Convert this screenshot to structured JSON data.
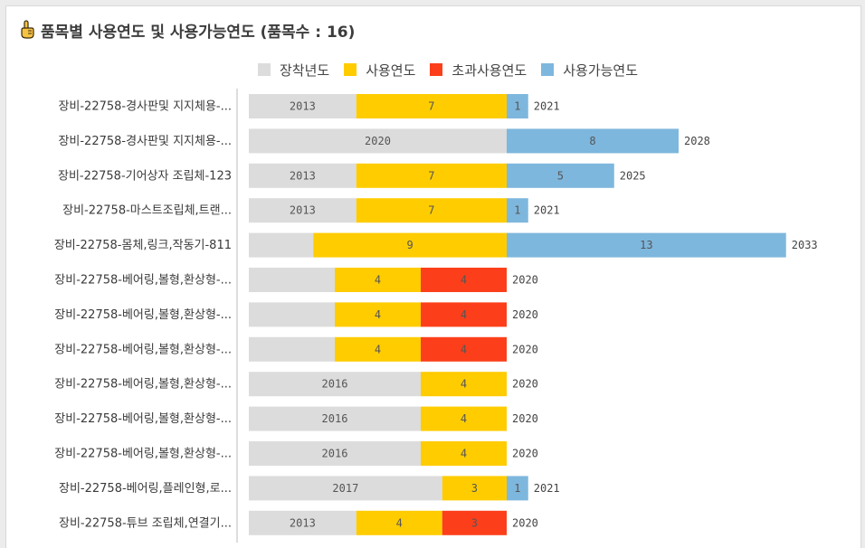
{
  "title": "품목별 사용연도 및 사용가능연도 (품목수 : 16)",
  "icon": "pointing-hand-icon",
  "colors": {
    "install": "#dcdcdc",
    "use": "#ffcc00",
    "over": "#fc3f1a",
    "avail": "#7eb7dd",
    "axis": "#bbbbbb"
  },
  "chart_data": {
    "type": "bar",
    "orientation": "horizontal",
    "stacked": true,
    "title": "품목별 사용연도 및 사용가능연도 (품목수 : 16)",
    "legend_position": "top",
    "legend": [
      {
        "key": "install",
        "label": "장착년도"
      },
      {
        "key": "use",
        "label": "사용연도"
      },
      {
        "key": "over",
        "label": "초과사용연도"
      },
      {
        "key": "avail",
        "label": "사용가능연도"
      }
    ],
    "xlim": [
      2008,
      2036
    ],
    "categories": [
      "장비-22758-경사판및 지지체용-...",
      "장비-22758-경사판및 지지체용-...",
      "장비-22758-기어상자 조립체-123",
      "장비-22758-마스트조립체,트랜...",
      "장비-22758-몸체,링크,작동기-811",
      "장비-22758-베어링,볼형,환상형-...",
      "장비-22758-베어링,볼형,환상형-...",
      "장비-22758-베어링,볼형,환상형-...",
      "장비-22758-베어링,볼형,환상형-...",
      "장비-22758-베어링,볼형,환상형-...",
      "장비-22758-베어링,볼형,환상형-...",
      "장비-22758-베어링,플레인형,로...",
      "장비-22758-튜브 조립체,연결기..."
    ],
    "rows": [
      {
        "install": 2013,
        "install_label": "2013",
        "use": 7,
        "use_label": "7",
        "over": 0,
        "over_label": "",
        "avail": 1,
        "avail_label": "1",
        "end_label": "2021"
      },
      {
        "install": 2020,
        "install_label": "2020",
        "use": 0,
        "use_label": "",
        "over": 0,
        "over_label": "",
        "avail": 8,
        "avail_label": "8",
        "end_label": "2028"
      },
      {
        "install": 2013,
        "install_label": "2013",
        "use": 7,
        "use_label": "7",
        "over": 0,
        "over_label": "",
        "avail": 5,
        "avail_label": "5",
        "end_label": "2025"
      },
      {
        "install": 2013,
        "install_label": "2013",
        "use": 7,
        "use_label": "7",
        "over": 0,
        "over_label": "",
        "avail": 1,
        "avail_label": "1",
        "end_label": "2021"
      },
      {
        "install": 2011,
        "install_label": "",
        "use": 9,
        "use_label": "9",
        "over": 0,
        "over_label": "",
        "avail": 13,
        "avail_label": "13",
        "end_label": "2033"
      },
      {
        "install": 2012,
        "install_label": "",
        "use": 4,
        "use_label": "4",
        "over": 4,
        "over_label": "4",
        "avail": 0,
        "avail_label": "",
        "end_label": "2020"
      },
      {
        "install": 2012,
        "install_label": "",
        "use": 4,
        "use_label": "4",
        "over": 4,
        "over_label": "4",
        "avail": 0,
        "avail_label": "",
        "end_label": "2020"
      },
      {
        "install": 2012,
        "install_label": "",
        "use": 4,
        "use_label": "4",
        "over": 4,
        "over_label": "4",
        "avail": 0,
        "avail_label": "",
        "end_label": "2020"
      },
      {
        "install": 2016,
        "install_label": "2016",
        "use": 4,
        "use_label": "4",
        "over": 0,
        "over_label": "",
        "avail": 0,
        "avail_label": "",
        "end_label": "2020"
      },
      {
        "install": 2016,
        "install_label": "2016",
        "use": 4,
        "use_label": "4",
        "over": 0,
        "over_label": "",
        "avail": 0,
        "avail_label": "",
        "end_label": "2020"
      },
      {
        "install": 2016,
        "install_label": "2016",
        "use": 4,
        "use_label": "4",
        "over": 0,
        "over_label": "",
        "avail": 0,
        "avail_label": "",
        "end_label": "2020"
      },
      {
        "install": 2017,
        "install_label": "2017",
        "use": 3,
        "use_label": "3",
        "over": 0,
        "over_label": "",
        "avail": 1,
        "avail_label": "1",
        "end_label": "2021"
      },
      {
        "install": 2013,
        "install_label": "2013",
        "use": 4,
        "use_label": "4",
        "over": 3,
        "over_label": "3",
        "avail": 0,
        "avail_label": "",
        "end_label": "2020"
      }
    ]
  }
}
